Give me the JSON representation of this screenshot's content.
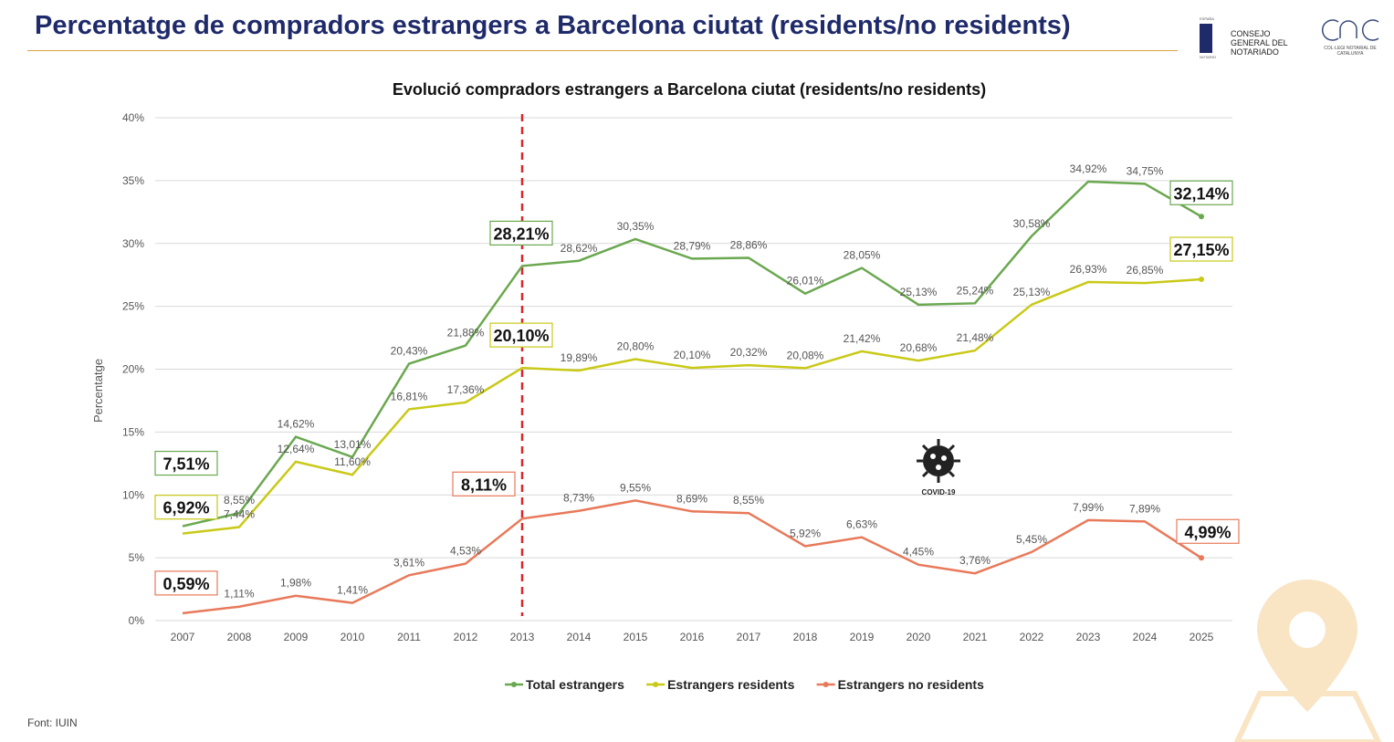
{
  "header": {
    "title": "Percentatge de compradors estrangers a Barcelona ciutat (residents/no residents)",
    "logos": [
      {
        "text": "CONSEJO GENERAL DEL NOTARIADO",
        "sub_top": "ESPAÑA",
        "sub_bottom": "NOTARIO"
      },
      {
        "text": "COL·LEGI NOTARIAL DE CATALUNYA"
      }
    ]
  },
  "chart_data": {
    "type": "line",
    "title": "Evolució compradors estrangers a Barcelona ciutat (residents/no residents)",
    "xlabel": "",
    "ylabel": "Percentatge",
    "ylim": [
      0,
      40
    ],
    "yticks": [
      "0%",
      "5%",
      "10%",
      "15%",
      "20%",
      "25%",
      "30%",
      "35%",
      "40%"
    ],
    "grid": true,
    "legend_position": "bottom",
    "categories": [
      "2007",
      "2008",
      "2009",
      "2010",
      "2011",
      "2012",
      "2013",
      "2014",
      "2015",
      "2016",
      "2017",
      "2018",
      "2019",
      "2020",
      "2021",
      "2022",
      "2023",
      "2024",
      "2025"
    ],
    "series": [
      {
        "name": "Total estrangers",
        "color": "#6aa84f",
        "values": [
          7.51,
          8.55,
          14.62,
          13.01,
          20.43,
          21.88,
          28.21,
          28.62,
          30.35,
          28.79,
          28.86,
          26.01,
          28.05,
          25.13,
          25.24,
          30.58,
          34.92,
          34.75,
          32.14
        ],
        "labels": [
          "7,51%",
          "8,55%",
          "14,62%",
          "13,01%",
          "20,43%",
          "21,88%",
          "28,21%",
          "28,62%",
          "30,35%",
          "28,79%",
          "28,86%",
          "26,01%",
          "28,05%",
          "25,13%",
          "25,24%",
          "30,58%",
          "34,92%",
          "34,75%",
          "32,14%"
        ]
      },
      {
        "name": "Estrangers residents",
        "color": "#c9c918",
        "values": [
          6.92,
          7.44,
          12.64,
          11.6,
          16.81,
          17.36,
          20.1,
          19.89,
          20.8,
          20.1,
          20.32,
          20.08,
          21.42,
          20.68,
          21.48,
          25.13,
          26.93,
          26.85,
          27.15
        ],
        "labels": [
          "6,92%",
          "7,44%",
          "12,64%",
          "11,60%",
          "16,81%",
          "17,36%",
          "20,10%",
          "19,89%",
          "20,80%",
          "20,10%",
          "20,32%",
          "20,08%",
          "21,42%",
          "20,68%",
          "21,48%",
          "25,13%",
          "26,93%",
          "26,85%",
          "27,15%"
        ]
      },
      {
        "name": "Estrangers no residents",
        "color": "#e8795a",
        "values": [
          0.59,
          1.11,
          1.98,
          1.41,
          3.61,
          4.53,
          8.11,
          8.73,
          9.55,
          8.69,
          8.55,
          5.92,
          6.63,
          4.45,
          3.76,
          5.45,
          7.99,
          7.89,
          4.99
        ],
        "labels": [
          "0,59%",
          "1,11%",
          "1,98%",
          "1,41%",
          "3,61%",
          "4,53%",
          "8,11%",
          "8,73%",
          "9,55%",
          "8,69%",
          "8,55%",
          "5,92%",
          "6,63%",
          "4,45%",
          "3,76%",
          "5,45%",
          "7,99%",
          "7,89%",
          "4,99%"
        ]
      }
    ],
    "highlighted_categories": [
      "2007",
      "2013",
      "2025"
    ],
    "reference_line": {
      "x": "2013",
      "color": "#d9262b",
      "style": "dashed"
    },
    "annotation": {
      "text": "COVID-19",
      "icon": "virus-icon",
      "x": "2020"
    }
  },
  "footer": {
    "source": "Font: IUIN"
  },
  "watermark": {
    "icon": "map-pin-icon",
    "color": "#f7d9a8"
  }
}
